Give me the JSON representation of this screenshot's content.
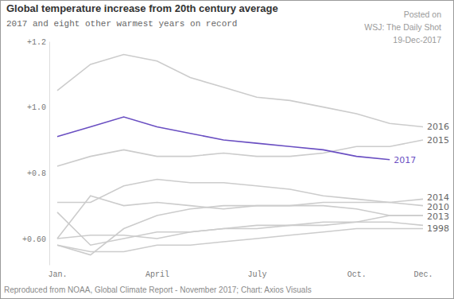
{
  "chart_data": {
    "type": "line",
    "title": "Global temperature increase from 20th century average",
    "subtitle": "2017 and eight other warmest years on record",
    "annotations": [
      "Posted on",
      "WSJ: The Daily Shot",
      "19-Dec-2017"
    ],
    "source": "Reproduced from NOAA, Global Climate Report - November 2017; Chart: Axios Visuals",
    "categories": [
      "Jan.",
      null,
      null,
      "April",
      null,
      null,
      "July",
      null,
      null,
      "Oct.",
      null,
      "Dec."
    ],
    "ylim": [
      0.52,
      1.2
    ],
    "yticks": [
      {
        "value": 0.6,
        "label": "+0.60"
      },
      {
        "value": 0.8,
        "label": "+0.8"
      },
      {
        "value": 1.0,
        "label": "+1.0"
      },
      {
        "value": 1.2,
        "label": "+1.2"
      }
    ],
    "grid": false,
    "series": [
      {
        "name": "2016",
        "color": "#cccccc",
        "values": [
          1.05,
          1.13,
          1.16,
          1.14,
          1.09,
          1.06,
          1.03,
          1.02,
          1.0,
          0.98,
          0.95,
          0.94
        ]
      },
      {
        "name": "2015",
        "color": "#cccccc",
        "values": [
          0.82,
          0.85,
          0.87,
          0.85,
          0.85,
          0.86,
          0.85,
          0.85,
          0.86,
          0.88,
          0.88,
          0.9
        ]
      },
      {
        "name": "2014",
        "color": "#cccccc",
        "values": [
          0.6,
          0.73,
          0.7,
          0.71,
          0.7,
          0.69,
          0.7,
          0.7,
          0.71,
          0.71,
          0.71,
          0.72
        ]
      },
      {
        "name": "2010",
        "color": "#cccccc",
        "values": [
          0.71,
          0.71,
          0.76,
          0.78,
          0.77,
          0.77,
          0.76,
          0.75,
          0.73,
          0.72,
          0.71,
          0.7
        ]
      },
      {
        "name": "2013",
        "color": "#cccccc",
        "values": [
          0.58,
          0.55,
          0.63,
          0.67,
          0.69,
          0.7,
          0.7,
          0.7,
          0.7,
          0.69,
          0.67,
          0.67
        ]
      },
      {
        "color": "#cccccc",
        "values": [
          0.68,
          0.58,
          0.6,
          0.62,
          0.62,
          0.63,
          0.63,
          0.64,
          0.64,
          0.65,
          0.65,
          0.64
        ]
      },
      {
        "color": "#cccccc",
        "values": [
          0.6,
          0.61,
          0.61,
          0.6,
          0.62,
          0.63,
          0.64,
          0.64,
          0.65,
          0.65,
          0.67,
          0.67
        ]
      },
      {
        "name": "1998",
        "color": "#cccccc",
        "values": [
          0.58,
          0.56,
          0.56,
          0.58,
          0.58,
          0.59,
          0.6,
          0.61,
          0.62,
          0.63,
          0.63,
          0.63
        ]
      },
      {
        "name": "2017",
        "color": "#6a4fc2",
        "values": [
          0.91,
          0.94,
          0.97,
          0.94,
          0.92,
          0.9,
          0.89,
          0.88,
          0.87,
          0.85,
          0.84,
          null
        ]
      }
    ]
  }
}
